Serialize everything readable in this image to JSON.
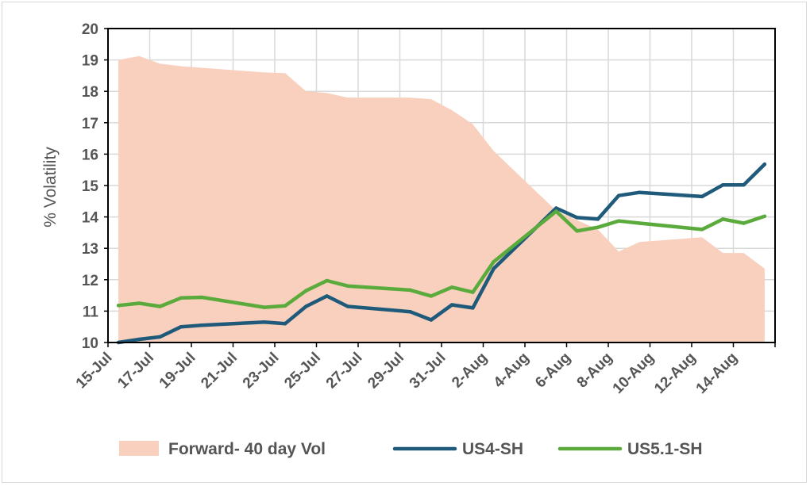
{
  "chart_data": {
    "type": "line",
    "title": "",
    "xlabel": "",
    "ylabel": "% Volatility",
    "ylim": [
      10,
      20
    ],
    "yticks": [
      10,
      11,
      12,
      13,
      14,
      15,
      16,
      17,
      18,
      19,
      20
    ],
    "grid": true,
    "legend_position": "bottom",
    "x_tick_labels": [
      "15-Jul",
      "17-Jul",
      "19-Jul",
      "21-Jul",
      "23-Jul",
      "25-Jul",
      "27-Jul",
      "29-Jul",
      "31-Jul",
      "2-Aug",
      "4-Aug",
      "6-Aug",
      "8-Aug",
      "10-Aug",
      "12-Aug",
      "14-Aug"
    ],
    "x_dates": [
      "15-Jul",
      "16-Jul",
      "17-Jul",
      "18-Jul",
      "19-Jul",
      "20-Jul",
      "21-Jul",
      "22-Jul",
      "23-Jul",
      "24-Jul",
      "25-Jul",
      "26-Jul",
      "27-Jul",
      "28-Jul",
      "29-Jul",
      "30-Jul",
      "31-Jul",
      "1-Aug",
      "2-Aug",
      "3-Aug",
      "4-Aug",
      "5-Aug",
      "6-Aug",
      "7-Aug",
      "8-Aug",
      "9-Aug",
      "10-Aug",
      "11-Aug",
      "12-Aug",
      "13-Aug",
      "14-Aug",
      "15-Aug"
    ],
    "series": [
      {
        "name": "Forward- 40 day Vol",
        "kind": "area",
        "color": "#f8d0bd",
        "points": [
          {
            "x": "15-Jul",
            "y": 19.0
          },
          {
            "x": "16-Jul",
            "y": 19.12
          },
          {
            "x": "17-Jul",
            "y": 18.88
          },
          {
            "x": "18-Jul",
            "y": 18.8
          },
          {
            "x": "19-Jul",
            "y": 18.75
          },
          {
            "x": "22-Jul",
            "y": 18.6
          },
          {
            "x": "23-Jul",
            "y": 18.58
          },
          {
            "x": "24-Jul",
            "y": 18.0
          },
          {
            "x": "25-Jul",
            "y": 17.95
          },
          {
            "x": "26-Jul",
            "y": 17.8
          },
          {
            "x": "29-Jul",
            "y": 17.8
          },
          {
            "x": "30-Jul",
            "y": 17.75
          },
          {
            "x": "31-Jul",
            "y": 17.4
          },
          {
            "x": "1-Aug",
            "y": 16.95
          },
          {
            "x": "2-Aug",
            "y": 16.1
          },
          {
            "x": "5-Aug",
            "y": 14.2
          },
          {
            "x": "6-Aug",
            "y": 13.9
          },
          {
            "x": "7-Aug",
            "y": 13.6
          },
          {
            "x": "8-Aug",
            "y": 12.9
          },
          {
            "x": "9-Aug",
            "y": 13.2
          },
          {
            "x": "12-Aug",
            "y": 13.35
          },
          {
            "x": "13-Aug",
            "y": 12.85
          },
          {
            "x": "14-Aug",
            "y": 12.85
          },
          {
            "x": "15-Aug",
            "y": 12.35
          }
        ]
      },
      {
        "name": "US4-SH",
        "kind": "line",
        "color": "#1f5a7a",
        "points": [
          {
            "x": "15-Jul",
            "y": 10.0
          },
          {
            "x": "16-Jul",
            "y": 10.1
          },
          {
            "x": "17-Jul",
            "y": 10.18
          },
          {
            "x": "18-Jul",
            "y": 10.5
          },
          {
            "x": "19-Jul",
            "y": 10.55
          },
          {
            "x": "22-Jul",
            "y": 10.65
          },
          {
            "x": "23-Jul",
            "y": 10.6
          },
          {
            "x": "24-Jul",
            "y": 11.15
          },
          {
            "x": "25-Jul",
            "y": 11.48
          },
          {
            "x": "26-Jul",
            "y": 11.15
          },
          {
            "x": "29-Jul",
            "y": 10.98
          },
          {
            "x": "30-Jul",
            "y": 10.72
          },
          {
            "x": "31-Jul",
            "y": 11.2
          },
          {
            "x": "1-Aug",
            "y": 11.1
          },
          {
            "x": "2-Aug",
            "y": 12.35
          },
          {
            "x": "5-Aug",
            "y": 14.28
          },
          {
            "x": "6-Aug",
            "y": 13.98
          },
          {
            "x": "7-Aug",
            "y": 13.93
          },
          {
            "x": "8-Aug",
            "y": 14.68
          },
          {
            "x": "9-Aug",
            "y": 14.78
          },
          {
            "x": "12-Aug",
            "y": 14.65
          },
          {
            "x": "13-Aug",
            "y": 15.02
          },
          {
            "x": "14-Aug",
            "y": 15.02
          },
          {
            "x": "15-Aug",
            "y": 15.68
          }
        ]
      },
      {
        "name": "US5.1-SH",
        "kind": "line",
        "color": "#5aaa3c",
        "points": [
          {
            "x": "15-Jul",
            "y": 11.18
          },
          {
            "x": "16-Jul",
            "y": 11.25
          },
          {
            "x": "17-Jul",
            "y": 11.15
          },
          {
            "x": "18-Jul",
            "y": 11.42
          },
          {
            "x": "19-Jul",
            "y": 11.44
          },
          {
            "x": "22-Jul",
            "y": 11.12
          },
          {
            "x": "23-Jul",
            "y": 11.17
          },
          {
            "x": "24-Jul",
            "y": 11.65
          },
          {
            "x": "25-Jul",
            "y": 11.97
          },
          {
            "x": "26-Jul",
            "y": 11.8
          },
          {
            "x": "29-Jul",
            "y": 11.67
          },
          {
            "x": "30-Jul",
            "y": 11.48
          },
          {
            "x": "31-Jul",
            "y": 11.76
          },
          {
            "x": "1-Aug",
            "y": 11.6
          },
          {
            "x": "2-Aug",
            "y": 12.57
          },
          {
            "x": "5-Aug",
            "y": 14.18
          },
          {
            "x": "6-Aug",
            "y": 13.55
          },
          {
            "x": "7-Aug",
            "y": 13.67
          },
          {
            "x": "8-Aug",
            "y": 13.87
          },
          {
            "x": "9-Aug",
            "y": 13.8
          },
          {
            "x": "12-Aug",
            "y": 13.6
          },
          {
            "x": "13-Aug",
            "y": 13.93
          },
          {
            "x": "14-Aug",
            "y": 13.8
          },
          {
            "x": "15-Aug",
            "y": 14.02
          }
        ]
      }
    ]
  }
}
